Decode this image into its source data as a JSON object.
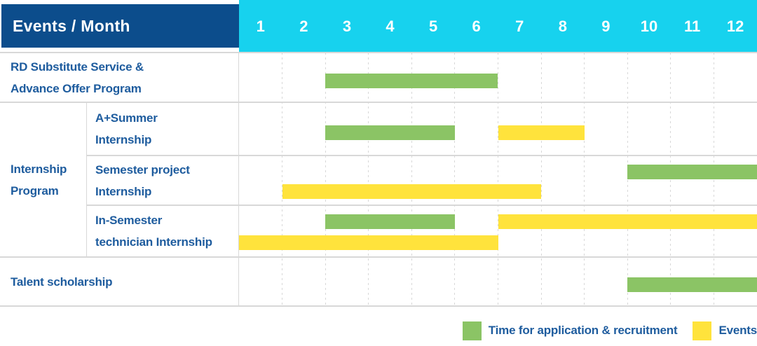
{
  "header": {
    "events_month_label": "Events / Month",
    "months": [
      "1",
      "2",
      "3",
      "4",
      "5",
      "6",
      "7",
      "8",
      "9",
      "10",
      "11",
      "12"
    ]
  },
  "legend": {
    "application_label": "Time for application & recruitment",
    "events_label": "Events"
  },
  "colors": {
    "header_bg": "#0C4D8C",
    "months_bg": "#17D2EE",
    "application_green": "#8BC465",
    "events_yellow": "#FFE33C",
    "text_blue": "#1E5C9E",
    "grid_line": "#D8D8D8"
  },
  "chart_data": {
    "type": "gantt",
    "unit": "month",
    "x_domain": [
      1,
      12
    ],
    "column_header": "Events / Month",
    "grid": "on",
    "legend_position": "bottom-right",
    "legend": [
      {
        "key": "application",
        "label": "Time for application & recruitment",
        "color": "#8BC465"
      },
      {
        "key": "events",
        "label": "Events",
        "color": "#FFE33C"
      }
    ],
    "group": {
      "label_lines": [
        "Internship",
        "Program"
      ],
      "row_indexes": [
        1,
        2,
        3
      ]
    },
    "rows": [
      {
        "label_lines": [
          "RD Substitute Service &",
          "Advance Offer Program"
        ],
        "in_group": false,
        "bars": [
          {
            "series": "application",
            "from_month": 3,
            "to_month": 6,
            "lane": "single"
          }
        ]
      },
      {
        "label_lines": [
          "A+Summer",
          "Internship"
        ],
        "in_group": true,
        "bars": [
          {
            "series": "application",
            "from_month": 3,
            "to_month": 5,
            "lane": "single"
          },
          {
            "series": "events",
            "from_month": 7,
            "to_month": 8,
            "lane": "single"
          }
        ]
      },
      {
        "label_lines": [
          "Semester project",
          "Internship"
        ],
        "in_group": true,
        "bars": [
          {
            "series": "application",
            "from_month": 10,
            "to_month": 12,
            "lane": "top"
          },
          {
            "series": "events",
            "from_month": 2,
            "to_month": 7,
            "lane": "bottom"
          }
        ]
      },
      {
        "label_lines": [
          "In-Semester",
          "technician Internship"
        ],
        "in_group": true,
        "bars": [
          {
            "series": "application",
            "from_month": 3,
            "to_month": 5,
            "lane": "top"
          },
          {
            "series": "events",
            "from_month": 7,
            "to_month": 12,
            "lane": "top"
          },
          {
            "series": "events",
            "from_month": 1,
            "to_month": 6,
            "lane": "bottom"
          }
        ]
      },
      {
        "label_lines": [
          "Talent scholarship"
        ],
        "in_group": false,
        "bars": [
          {
            "series": "application",
            "from_month": 10,
            "to_month": 12,
            "lane": "single"
          }
        ]
      }
    ]
  }
}
